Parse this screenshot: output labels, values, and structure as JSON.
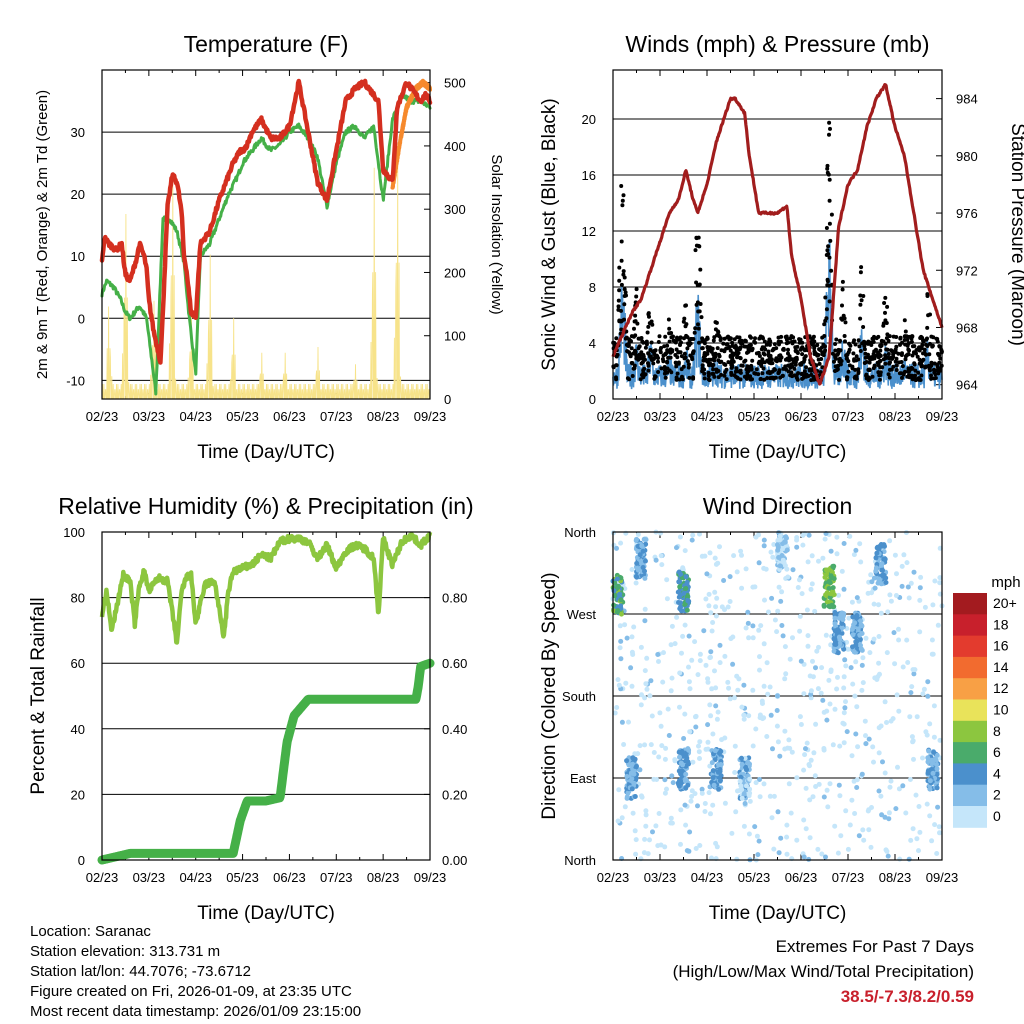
{
  "colors": {
    "red_temp": "#d42f1f",
    "orange_temp": "#f6892c",
    "green_dew": "#45b048",
    "yellow_solar": "#f7e38a",
    "maroon_pressure": "#a11d1d",
    "blue_wind": "#4b90cc",
    "black_gust": "#000000",
    "green_rh": "#8cc63f",
    "green_precip": "#45b048",
    "extremes_text": "#c8202c"
  },
  "info": {
    "location": "Location: Saranac",
    "elevation": "Station elevation: 313.731 m",
    "latlon": "Station lat/lon: 44.7076; -73.6712",
    "created": "Figure created on Fri, 2026-01-09, at 23:35 UTC",
    "recent": "Most recent data timestamp: 2026/01/09 23:15:00"
  },
  "extremes": {
    "title": "Extremes For Past 7 Days",
    "subtitle": "(High/Low/Max Wind/Total Precipitation)",
    "values": "38.5/-7.3/8.2/0.59"
  },
  "chart_data": [
    {
      "type": "line",
      "title": "Temperature (F)",
      "xlabel": "Time (Day/UTC)",
      "ylabel": "2m & 9m T (Red, Orange) & 2m Td (Green)",
      "y2label": "Solar Insolation (Yellow)",
      "x_ticks": [
        "02/23",
        "03/23",
        "04/23",
        "05/23",
        "06/23",
        "07/23",
        "08/23",
        "09/23"
      ],
      "ylim": [
        -13,
        40
      ],
      "y_ticks": [
        -10,
        0,
        10,
        20,
        30
      ],
      "y2lim": [
        0,
        520
      ],
      "y2_ticks": [
        0,
        100,
        200,
        300,
        400,
        500
      ],
      "series": [
        {
          "name": "2m T",
          "axis": "left",
          "color": "#d42f1f",
          "x": [
            0,
            0.05,
            0.15,
            0.3,
            0.42,
            0.5,
            0.6,
            0.75,
            0.8,
            0.9,
            0.95,
            1.0,
            1.1,
            1.25,
            1.4,
            1.5,
            1.6,
            1.7,
            1.75,
            1.8,
            1.9,
            2.0,
            2.1,
            2.3,
            2.5,
            2.6,
            2.8,
            2.95,
            3.0,
            3.1,
            3.2,
            3.4,
            3.6,
            3.8,
            3.9,
            4.0,
            4.2,
            4.4,
            4.6,
            4.8,
            5.0,
            5.2,
            5.4,
            5.6,
            5.8,
            5.9,
            6.0,
            6.1,
            6.2,
            6.3,
            6.5,
            6.7,
            6.8,
            6.9,
            7.0
          ],
          "values": [
            9,
            13,
            12,
            11,
            12,
            7,
            6,
            10,
            12,
            10,
            8,
            3,
            -2,
            -7,
            18,
            23,
            22,
            17,
            10,
            8,
            1,
            0,
            12,
            14,
            19,
            21,
            25,
            27,
            27,
            28,
            30,
            32,
            29,
            29,
            30,
            31,
            38,
            30,
            22,
            19,
            27,
            35,
            37,
            38,
            36,
            35,
            24,
            23,
            22,
            34,
            38,
            36,
            35,
            36,
            35
          ]
        },
        {
          "name": "9m T",
          "axis": "left",
          "color": "#f6892c",
          "x": [
            6.2,
            6.35,
            6.5,
            6.7,
            6.85,
            7.0
          ],
          "values": [
            21,
            28,
            34,
            37,
            38,
            37
          ]
        },
        {
          "name": "2m Td",
          "axis": "left",
          "color": "#45b048",
          "x": [
            0,
            0.1,
            0.25,
            0.4,
            0.5,
            0.6,
            0.8,
            0.95,
            1.0,
            1.15,
            1.3,
            1.45,
            1.6,
            1.75,
            1.85,
            2.0,
            2.1,
            2.3,
            2.5,
            2.7,
            2.9,
            3.0,
            3.2,
            3.4,
            3.6,
            3.8,
            4.0,
            4.2,
            4.4,
            4.6,
            4.8,
            5.0,
            5.2,
            5.4,
            5.6,
            5.8,
            6.0,
            6.2,
            6.4,
            6.6,
            6.8,
            7.0
          ],
          "values": [
            4,
            6,
            5,
            3,
            1,
            0,
            2,
            0,
            -3,
            -12,
            16,
            16,
            14,
            9,
            1,
            -9,
            10,
            12,
            16,
            20,
            23,
            25,
            27,
            29,
            27,
            28,
            30,
            31,
            29,
            26,
            18,
            25,
            30,
            31,
            29,
            31,
            19,
            32,
            36,
            35,
            35,
            34
          ]
        },
        {
          "name": "Solar Insolation",
          "axis": "right",
          "color": "#f7e38a",
          "peaks": [
            [
              0.15,
              160
            ],
            [
              0.5,
              320
            ],
            [
              1.1,
              170
            ],
            [
              1.5,
              390
            ],
            [
              1.9,
              150
            ],
            [
              2.3,
              250
            ],
            [
              2.8,
              140
            ],
            [
              3.4,
              80
            ],
            [
              3.9,
              80
            ],
            [
              4.6,
              90
            ],
            [
              5.4,
              60
            ],
            [
              5.8,
              400
            ],
            [
              6.3,
              430
            ]
          ]
        }
      ]
    },
    {
      "type": "line",
      "title": "Winds (mph) & Pressure (mb)",
      "xlabel": "Time (Day/UTC)",
      "ylabel": "Sonic Wind & Gust (Blue, Black)",
      "y2label": "Station Pressure (Maroon)",
      "x_ticks": [
        "02/23",
        "03/23",
        "04/23",
        "05/23",
        "06/23",
        "07/23",
        "08/23",
        "09/23"
      ],
      "ylim": [
        0,
        23.5
      ],
      "y_ticks": [
        0,
        4,
        8,
        12,
        16,
        20
      ],
      "y2lim": [
        963,
        986
      ],
      "y2_ticks": [
        964,
        968,
        972,
        976,
        980,
        984
      ],
      "series": [
        {
          "name": "Station Pressure",
          "axis": "right",
          "color": "#a11d1d",
          "x": [
            0,
            0.2,
            0.4,
            0.6,
            0.8,
            1.0,
            1.2,
            1.4,
            1.55,
            1.7,
            1.8,
            2.0,
            2.2,
            2.5,
            2.6,
            2.8,
            2.9,
            3.1,
            3.5,
            3.7,
            3.8,
            4.0,
            4.2,
            4.4,
            4.6,
            4.8,
            5.0,
            5.2,
            5.4,
            5.6,
            5.8,
            6.0,
            6.2,
            6.4,
            6.6,
            6.8,
            7.0
          ],
          "values": [
            966,
            967.5,
            969,
            970,
            972,
            974,
            976,
            977,
            979,
            977,
            976,
            978,
            981,
            984,
            984,
            983,
            980,
            976,
            976,
            976.5,
            973,
            970,
            966,
            964,
            966,
            975,
            978,
            979,
            982,
            984,
            985,
            982,
            980,
            976,
            972,
            970,
            968
          ]
        },
        {
          "name": "Gust",
          "axis": "left",
          "color": "#000000",
          "peaks": [
            [
              0.2,
              16.5
            ],
            [
              0.5,
              8
            ],
            [
              0.8,
              8
            ],
            [
              1.2,
              6
            ],
            [
              1.55,
              7
            ],
            [
              1.8,
              14
            ],
            [
              2.2,
              6
            ],
            [
              2.7,
              4
            ],
            [
              3.2,
              4
            ],
            [
              3.8,
              3
            ],
            [
              4.2,
              4
            ],
            [
              4.6,
              21.5
            ],
            [
              4.9,
              9
            ],
            [
              5.3,
              10
            ],
            [
              5.8,
              8
            ],
            [
              6.2,
              6
            ],
            [
              6.7,
              8
            ]
          ]
        },
        {
          "name": "Sonic Wind",
          "axis": "left",
          "color": "#4b90cc",
          "mean_level": 2.5
        }
      ]
    },
    {
      "type": "line",
      "title": "Relative Humidity (%) & Precipitation (in)",
      "xlabel": "Time (Day/UTC)",
      "ylabel": "Percent & Total Rainfall",
      "x_ticks": [
        "02/23",
        "03/23",
        "04/23",
        "05/23",
        "06/23",
        "07/23",
        "08/23",
        "09/23"
      ],
      "ylim": [
        0,
        100
      ],
      "y_ticks": [
        0,
        20,
        40,
        60,
        80,
        100
      ],
      "y2lim": [
        0,
        1.0
      ],
      "y2_ticks": [
        "0.00",
        "0.20",
        "0.40",
        "0.60",
        "0.80"
      ],
      "series": [
        {
          "name": "Relative Humidity",
          "axis": "left",
          "color": "#8cc63f",
          "x": [
            0,
            0.1,
            0.2,
            0.3,
            0.45,
            0.6,
            0.7,
            0.8,
            0.9,
            1.0,
            1.2,
            1.4,
            1.6,
            1.7,
            1.8,
            1.9,
            2.0,
            2.2,
            2.4,
            2.6,
            2.7,
            2.8,
            3.0,
            3.2,
            3.4,
            3.6,
            3.8,
            4.0,
            4.2,
            4.4,
            4.6,
            4.8,
            5.0,
            5.2,
            5.4,
            5.6,
            5.8,
            5.9,
            6.0,
            6.2,
            6.4,
            6.6,
            6.8,
            7.0
          ],
          "values": [
            75,
            82,
            70,
            76,
            87,
            85,
            72,
            84,
            88,
            82,
            86,
            85,
            66,
            82,
            86,
            87,
            72,
            84,
            85,
            68,
            82,
            88,
            89,
            90,
            93,
            92,
            97,
            98,
            98,
            97,
            92,
            96,
            89,
            94,
            96,
            95,
            92,
            75,
            98,
            90,
            97,
            99,
            96,
            99
          ]
        },
        {
          "name": "Total Precipitation",
          "axis": "right",
          "color": "#45b048",
          "x": [
            0,
            0.3,
            0.6,
            1.0,
            2.5,
            2.8,
            2.95,
            3.1,
            3.5,
            3.8,
            3.95,
            4.1,
            4.4,
            5.0,
            6.0,
            6.7,
            6.75,
            6.8,
            7.0
          ],
          "values": [
            0.0,
            0.01,
            0.02,
            0.02,
            0.02,
            0.02,
            0.12,
            0.18,
            0.18,
            0.19,
            0.36,
            0.44,
            0.49,
            0.49,
            0.49,
            0.49,
            0.53,
            0.59,
            0.6
          ]
        }
      ]
    },
    {
      "type": "scatter",
      "title": "Wind Direction",
      "xlabel": "Time (Day/UTC)",
      "ylabel": "Direction (Colored By Speed)",
      "x_ticks": [
        "02/23",
        "03/23",
        "04/23",
        "05/23",
        "06/23",
        "07/23",
        "08/23",
        "09/23"
      ],
      "y_ticks": [
        "North",
        "West",
        "South",
        "East",
        "North"
      ],
      "colorbar": {
        "title": "mph",
        "labels": [
          "20+",
          "18",
          "16",
          "14",
          "12",
          "10",
          "8",
          "6",
          "4",
          "2",
          "0"
        ],
        "colors": [
          "#a31b1f",
          "#c8202c",
          "#e33b2e",
          "#f26b2f",
          "#f8a045",
          "#e9e35a",
          "#8cc63f",
          "#4aab6b",
          "#4b90cc",
          "#85bde8",
          "#c5e6fa"
        ]
      },
      "clusters": [
        {
          "x": 0.1,
          "dir": 290,
          "speed": 6
        },
        {
          "x": 0.6,
          "dir": 330,
          "speed": 3
        },
        {
          "x": 0.4,
          "dir": 90,
          "speed": 3
        },
        {
          "x": 1.5,
          "dir": 295,
          "speed": 5
        },
        {
          "x": 1.5,
          "dir": 100,
          "speed": 3
        },
        {
          "x": 2.2,
          "dir": 100,
          "speed": 3
        },
        {
          "x": 2.8,
          "dir": 90,
          "speed": 2
        },
        {
          "x": 3.6,
          "dir": 340,
          "speed": 1
        },
        {
          "x": 4.6,
          "dir": 300,
          "speed": 7
        },
        {
          "x": 4.8,
          "dir": 250,
          "speed": 3
        },
        {
          "x": 5.2,
          "dir": 250,
          "speed": 3
        },
        {
          "x": 5.7,
          "dir": 325,
          "speed": 3
        },
        {
          "x": 6.8,
          "dir": 100,
          "speed": 3
        }
      ]
    }
  ]
}
